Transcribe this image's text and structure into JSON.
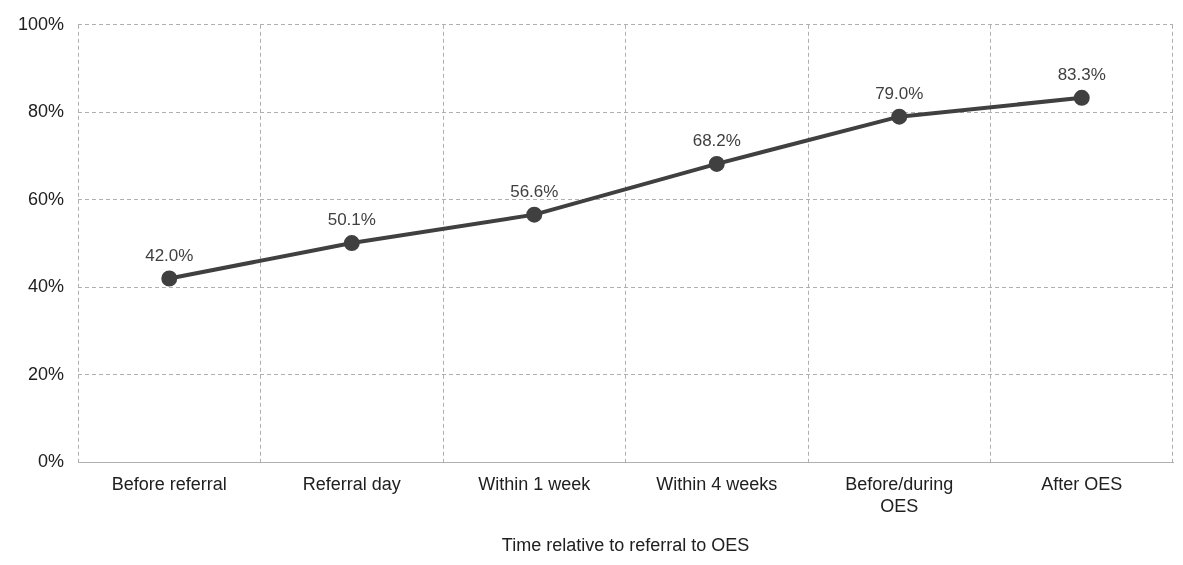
{
  "chart_data": {
    "type": "line",
    "xlabel": "Time relative to referral to OES",
    "categories": [
      "Before referral",
      "Referral day",
      "Within 1 week",
      "Within 4 weeks",
      "Before/during OES",
      "After OES"
    ],
    "values": [
      42.0,
      50.1,
      56.6,
      68.2,
      79.0,
      83.3
    ],
    "value_labels": [
      "42.0%",
      "50.1%",
      "56.6%",
      "68.2%",
      "79.0%",
      "83.3%"
    ],
    "color": "#404040",
    "marker": "circle",
    "line_style": "solid",
    "grid": true,
    "legend": false,
    "ylim": [
      0,
      100
    ],
    "yticks": [
      {
        "value": 0,
        "label": "0%"
      },
      {
        "value": 20,
        "label": "20%"
      },
      {
        "value": 40,
        "label": "40%"
      },
      {
        "value": 60,
        "label": "60%"
      },
      {
        "value": 80,
        "label": "80%"
      },
      {
        "value": 100,
        "label": "100%"
      }
    ]
  }
}
